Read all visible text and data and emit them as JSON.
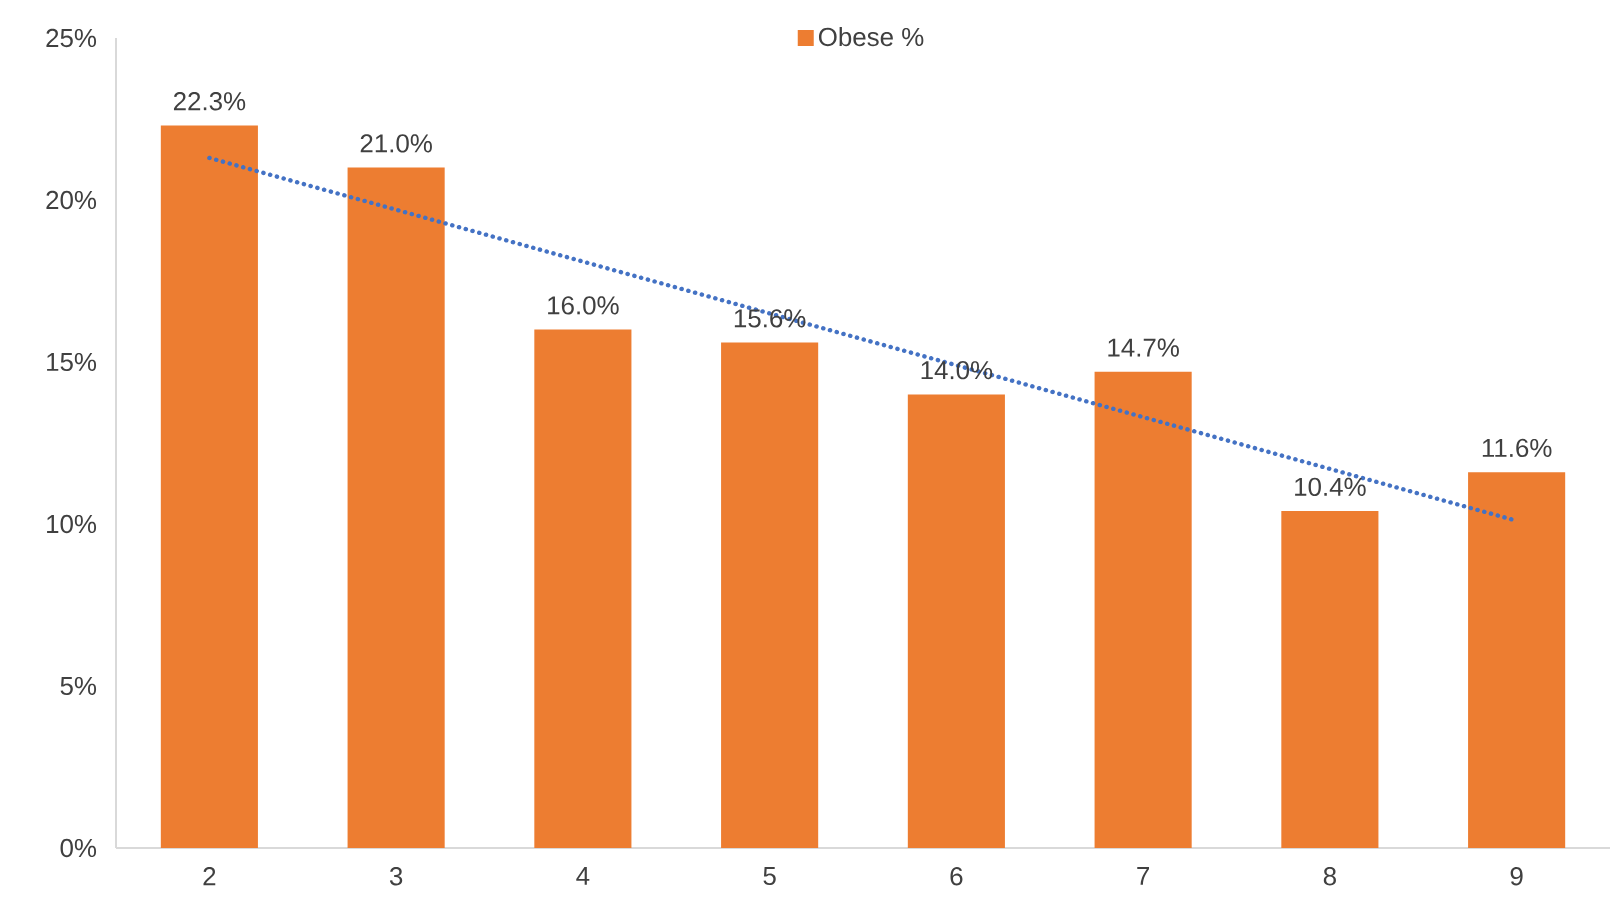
{
  "chart_data": {
    "type": "bar",
    "x": [
      2,
      3,
      4,
      5,
      6,
      7,
      8,
      9
    ],
    "xlim": [
      1.5,
      9.5
    ],
    "xticks": [
      2,
      3,
      4,
      5,
      6,
      7,
      8,
      9
    ],
    "ylim": [
      0,
      25
    ],
    "yticks": [
      {
        "value": 0,
        "label": "0%"
      },
      {
        "value": 5,
        "label": "5%"
      },
      {
        "value": 10,
        "label": "10%"
      },
      {
        "value": 15,
        "label": "15%"
      },
      {
        "value": 20,
        "label": "20%"
      },
      {
        "value": 25,
        "label": "25%"
      }
    ],
    "legend": "top",
    "series": [
      {
        "name": "Obese %",
        "color": "#ed7d31",
        "values": [
          22.3,
          21.0,
          16.0,
          15.6,
          14.0,
          14.7,
          10.4,
          11.6
        ],
        "value_labels": [
          "22.3%",
          "21.0%",
          "16.0%",
          "15.6%",
          "14.0%",
          "14.7%",
          "10.4%",
          "11.6%"
        ]
      },
      {
        "type": "line",
        "color": "#4472c4",
        "line_style": "dotted",
        "x": [
          2,
          9
        ],
        "values": [
          21.3,
          10.1
        ]
      }
    ]
  }
}
